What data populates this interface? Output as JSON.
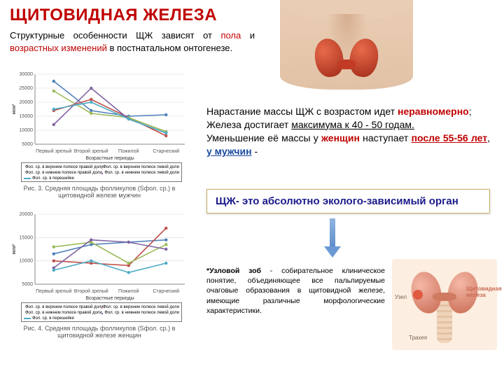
{
  "title": {
    "text": "ЩИТОВИДНАЯ ЖЕЛЕЗА",
    "color": "#c00000"
  },
  "intro": {
    "pre": "Структурные особенности ЩЖ зависят от ",
    "k1": "пола",
    "mid": " и ",
    "k2": "возрастных изменений",
    "post": " в постнатальном онтогенезе."
  },
  "body": {
    "l1a": "Нарастание массы ЩЖ с возрастом идет ",
    "l1b": "неравномерно",
    "l1c": ";",
    "l2a": "Железа достигает ",
    "l2b": "максимума к 40 - 50 годам.",
    "l3a": "Уменьшение её массы у ",
    "l3b": "женщин",
    "l3c": " наступает ",
    "l3d": "после 55-56 лет",
    "l3e": ", ",
    "l3f": "у мужчин",
    "l3g": " -"
  },
  "callout": "ЩЖ- это абсолютно эколого-зависимый орган",
  "foot": {
    "b": "*Узловой зоб",
    "rest": " - собирательное клиническое понятие, объединяющее все пальпируемые очаговые образования в щитовидной железе, имеющие различные морфологические характеристики."
  },
  "chart1": {
    "ylabel": "мкм²",
    "ylim": [
      5000,
      30000
    ],
    "ystep": 5000,
    "xlabel": "Возрастные периоды",
    "categories": [
      "Первый зрелый",
      "Второй зрелый",
      "Пожилой",
      "Старческий"
    ],
    "series": [
      {
        "name": "Фол. ср. в верхнем полюсе правой доли",
        "color": "#4f81bd",
        "vals": [
          27500,
          17000,
          15000,
          15500
        ]
      },
      {
        "name": "Фол. ср. в верхнем полюсе левой доли",
        "color": "#c0504d",
        "vals": [
          17000,
          21000,
          14500,
          8000
        ]
      },
      {
        "name": "Фол. ср. в нижнем полюсе правой доли",
        "color": "#9bbb59",
        "vals": [
          24000,
          16000,
          14500,
          9500
        ]
      },
      {
        "name": "Фол. ср. в нижнем полюсе левой доли",
        "color": "#8064a2",
        "vals": [
          12000,
          25000,
          14000,
          9000
        ]
      },
      {
        "name": "Фол. ср. в перешейке",
        "color": "#4bacc6",
        "vals": [
          17500,
          20000,
          14000,
          9000
        ]
      }
    ],
    "caption": "Рис. 3. Средняя площадь фолликулов (Sфол. ср.) в щитовидной железе мужчин"
  },
  "chart2": {
    "ylabel": "мкм²",
    "ylim": [
      5000,
      20000
    ],
    "ystep": 5000,
    "xlabel": "Возрастные периоды",
    "categories": [
      "Первый зрелый",
      "Второй зрелый",
      "Пожилой",
      "Старческий"
    ],
    "series": [
      {
        "name": "Фол. ср. в верхнем полюсе правой доли",
        "color": "#4f81bd",
        "vals": [
          11500,
          13500,
          14000,
          14500
        ]
      },
      {
        "name": "Фол. ср. в верхнем полюсе левой доли",
        "color": "#c0504d",
        "vals": [
          10000,
          9500,
          9000,
          17000
        ]
      },
      {
        "name": "Фол. ср. в нижнем полюсе правой доли",
        "color": "#9bbb59",
        "vals": [
          13000,
          14000,
          9500,
          13500
        ]
      },
      {
        "name": "Фол. ср. в нижнем полюсе левой доли",
        "color": "#8064a2",
        "vals": [
          8500,
          14500,
          14000,
          12500
        ]
      },
      {
        "name": "Фол. ср. в перешейке",
        "color": "#4bacc6",
        "vals": [
          8000,
          10000,
          7500,
          9500
        ]
      }
    ],
    "caption": "Рис. 4. Средняя площадь фолликулов (Sфол. ср.) в щитовидной железе женщин"
  },
  "diagram2": {
    "l_uzel": "Узел",
    "l_trach": "Трахея",
    "l_gland": "Щитовидная железа"
  },
  "style": {
    "grid": "#d9d9d9",
    "axis": "#888",
    "line_w": 1.6,
    "marker_r": 2.2
  }
}
